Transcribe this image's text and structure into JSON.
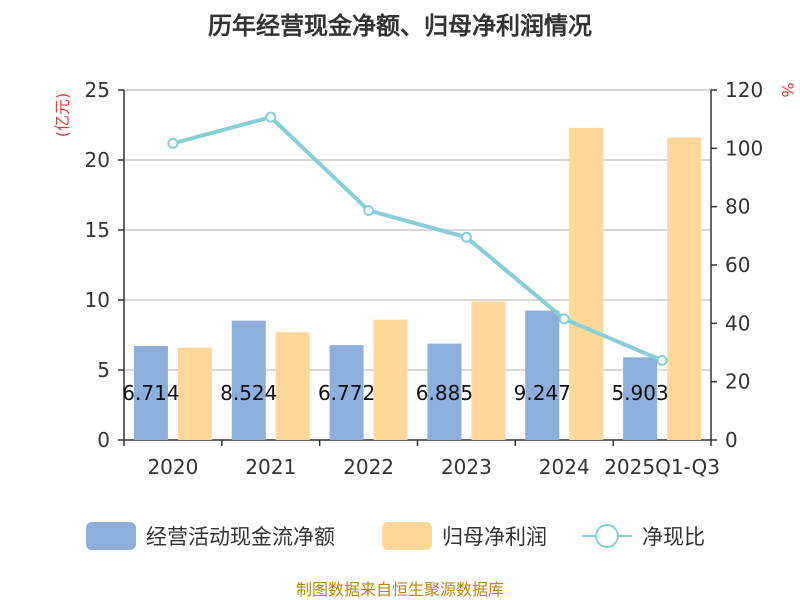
{
  "chart_data": {
    "type": "bar+line",
    "title": "历年经营现金净额、归母净利润情况",
    "categories": [
      "2020",
      "2021",
      "2022",
      "2023",
      "2024",
      "2025Q1-Q3"
    ],
    "series": [
      {
        "name": "经营活动现金流净额",
        "kind": "bar",
        "axis": "left",
        "color": "#8eaedb",
        "values": [
          6.714,
          8.524,
          6.772,
          6.885,
          9.247,
          5.903
        ],
        "labels": [
          "6.714",
          "8.524",
          "6.772",
          "6.885",
          "9.247",
          "5.903"
        ]
      },
      {
        "name": "归母净利润",
        "kind": "bar",
        "axis": "left",
        "color": "#ffd899",
        "values": [
          6.6,
          7.7,
          8.6,
          9.9,
          22.3,
          21.6
        ]
      },
      {
        "name": "净现比",
        "kind": "line",
        "axis": "right",
        "color": "#86cfd8",
        "values": [
          101.7,
          110.7,
          78.7,
          69.5,
          41.5,
          27.3
        ]
      }
    ],
    "y_left": {
      "unit": "(亿元)",
      "min": 0,
      "max": 25,
      "ticks": [
        0,
        5,
        10,
        15,
        20,
        25
      ]
    },
    "y_right": {
      "unit": "%",
      "min": 0,
      "max": 120,
      "ticks": [
        0,
        20,
        40,
        60,
        80,
        100,
        120
      ]
    },
    "grid": true,
    "legend_position": "bottom"
  },
  "source_text": "制图数据来自恒生聚源数据库"
}
